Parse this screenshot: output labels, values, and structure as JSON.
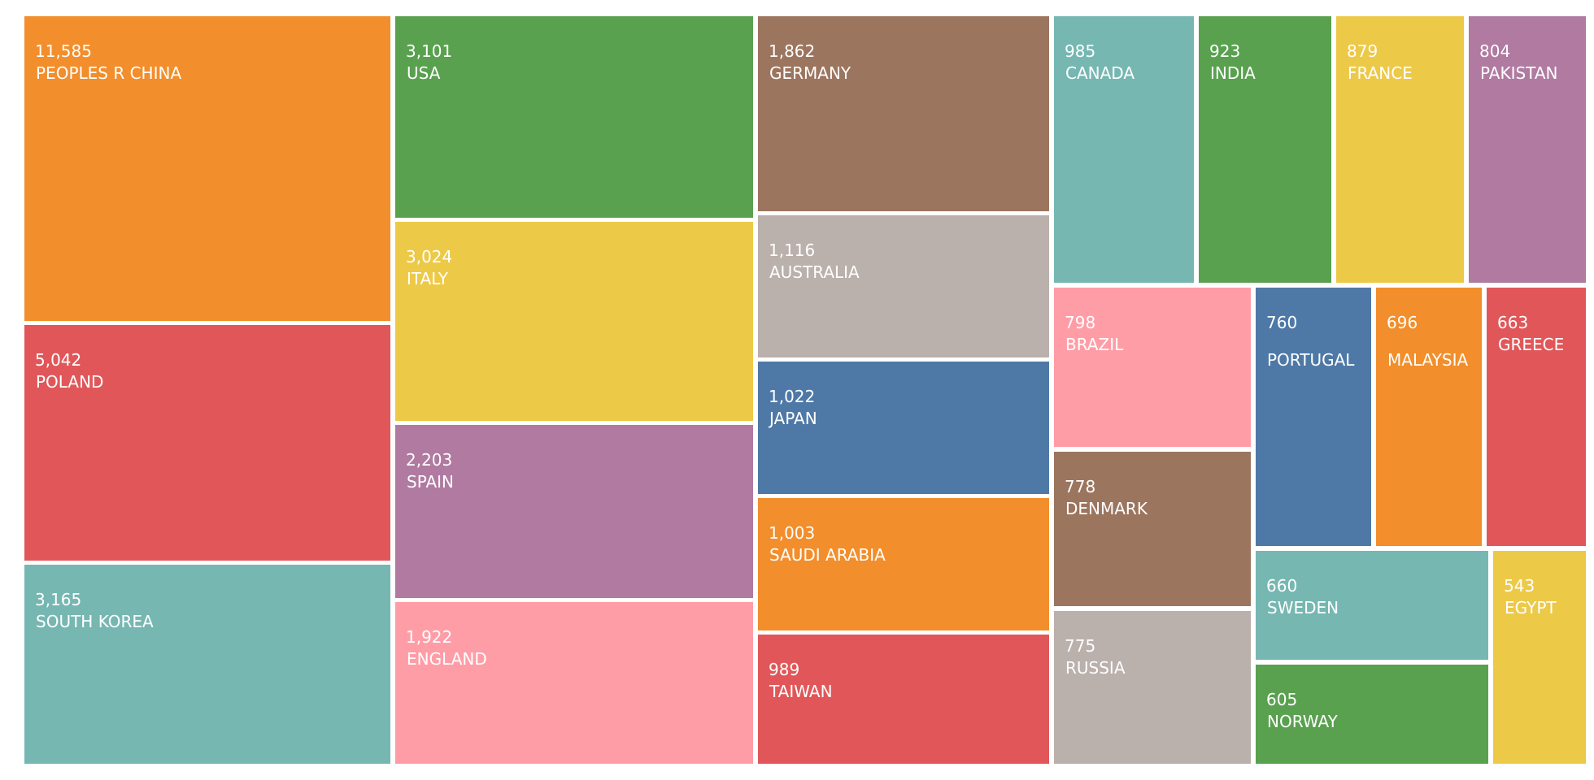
{
  "chart_data": {
    "type": "treemap",
    "title": "",
    "items": [
      {
        "label": "PEOPLES R CHINA",
        "value": "11,585",
        "color": "#F28E2B"
      },
      {
        "label": "POLAND",
        "value": "5,042",
        "color": "#E15759"
      },
      {
        "label": "SOUTH KOREA",
        "value": "3,165",
        "color": "#76B7B2"
      },
      {
        "label": "USA",
        "value": "3,101",
        "color": "#59A14F"
      },
      {
        "label": "ITALY",
        "value": "3,024",
        "color": "#EDC948"
      },
      {
        "label": "SPAIN",
        "value": "2,203",
        "color": "#B07AA1"
      },
      {
        "label": "ENGLAND",
        "value": "1,922",
        "color": "#FF9DA7"
      },
      {
        "label": "GERMANY",
        "value": "1,862",
        "color": "#9C755F"
      },
      {
        "label": "AUSTRALIA",
        "value": "1,116",
        "color": "#BAB0AC"
      },
      {
        "label": "JAPAN",
        "value": "1,022",
        "color": "#4E79A7"
      },
      {
        "label": "SAUDI ARABIA",
        "value": "1,003",
        "color": "#F28E2B"
      },
      {
        "label": "TAIWAN",
        "value": "989",
        "color": "#E15759"
      },
      {
        "label": "CANADA",
        "value": "985",
        "color": "#76B7B2"
      },
      {
        "label": "INDIA",
        "value": "923",
        "color": "#59A14F"
      },
      {
        "label": "FRANCE",
        "value": "879",
        "color": "#EDC948"
      },
      {
        "label": "PAKISTAN",
        "value": "804",
        "color": "#B07AA1"
      },
      {
        "label": "BRAZIL",
        "value": "798",
        "color": "#FF9DA7"
      },
      {
        "label": "DENMARK",
        "value": "778",
        "color": "#9C755F"
      },
      {
        "label": "RUSSIA",
        "value": "775",
        "color": "#BAB0AC"
      },
      {
        "label": "PORTUGAL",
        "value": "760",
        "color": "#4E79A7"
      },
      {
        "label": "MALAYSIA",
        "value": "696",
        "color": "#F28E2B"
      },
      {
        "label": "GREECE",
        "value": "663",
        "color": "#E15759"
      },
      {
        "label": "SWEDEN",
        "value": "660",
        "color": "#76B7B2"
      },
      {
        "label": "EGYPT",
        "value": "543",
        "color": "#EDC948"
      },
      {
        "label": "NORWAY",
        "value": "605",
        "color": "#59A14F"
      }
    ]
  }
}
